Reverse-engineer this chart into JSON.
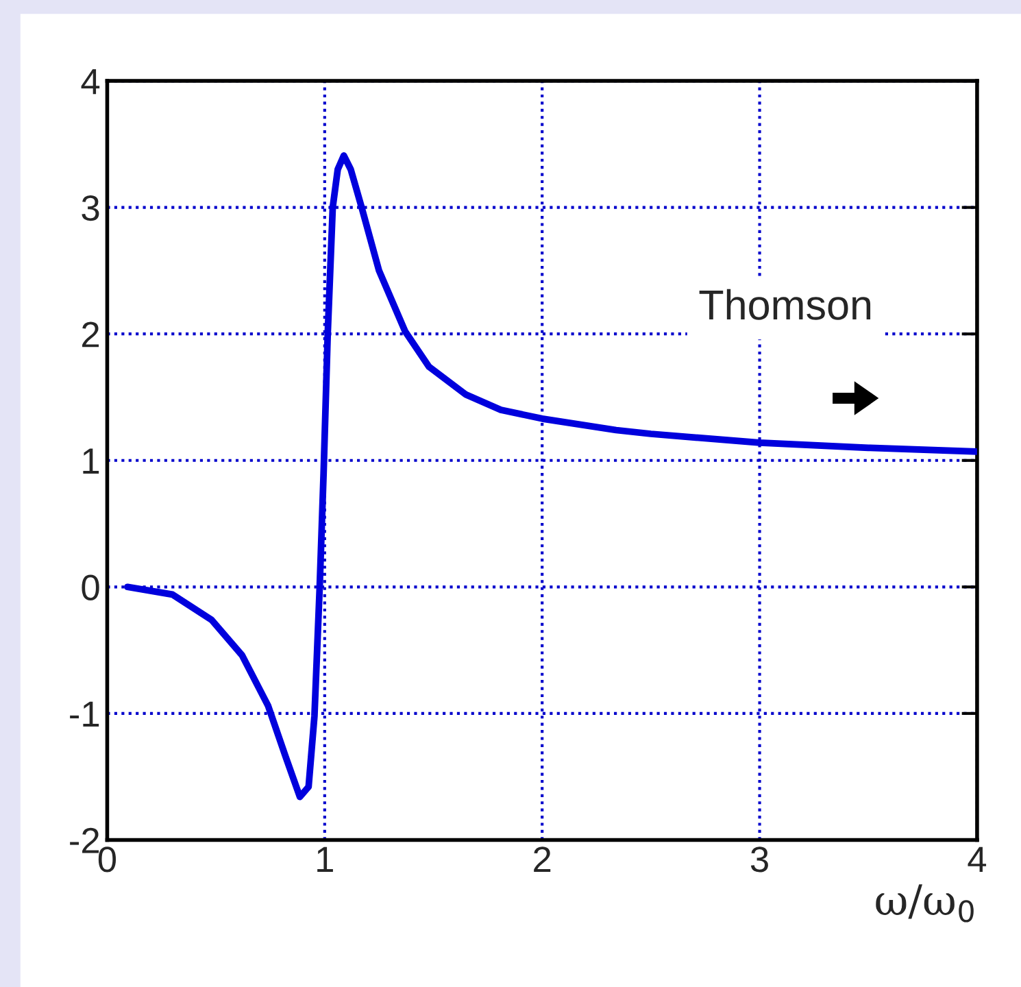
{
  "chart_data": {
    "type": "line",
    "xlabel": "ω/ω$_{0}$",
    "annotations": [
      "Thomson"
    ],
    "series": [
      {
        "color": "#0000dd",
        "x": [
          0.093,
          0.3,
          0.48,
          0.62,
          0.74,
          0.82,
          0.886,
          0.926,
          0.953,
          0.977,
          0.995,
          1.014,
          1.037,
          1.06,
          1.088,
          1.12,
          1.17,
          1.25,
          1.37,
          1.48,
          1.65,
          1.81,
          2.0,
          2.34,
          2.5,
          3.0,
          3.5,
          4.0
        ],
        "values": [
          0,
          -0.06,
          -0.26,
          -0.54,
          -0.94,
          -1.34,
          -1.66,
          -1.58,
          -1.02,
          0,
          0.9,
          2.0,
          3.0,
          3.3,
          3.41,
          3.3,
          3.0,
          2.5,
          2.02,
          1.74,
          1.52,
          1.4,
          1.33,
          1.24,
          1.21,
          1.14,
          1.1,
          1.07
        ]
      }
    ],
    "xlim": [
      0,
      4
    ],
    "ylim": [
      -2,
      4
    ],
    "xticks": [
      0,
      1,
      2,
      3,
      4
    ],
    "yticks": [
      -2,
      -1,
      0,
      1,
      2,
      3,
      4
    ],
    "grid": true,
    "marker": "none",
    "line_style": "solid"
  }
}
